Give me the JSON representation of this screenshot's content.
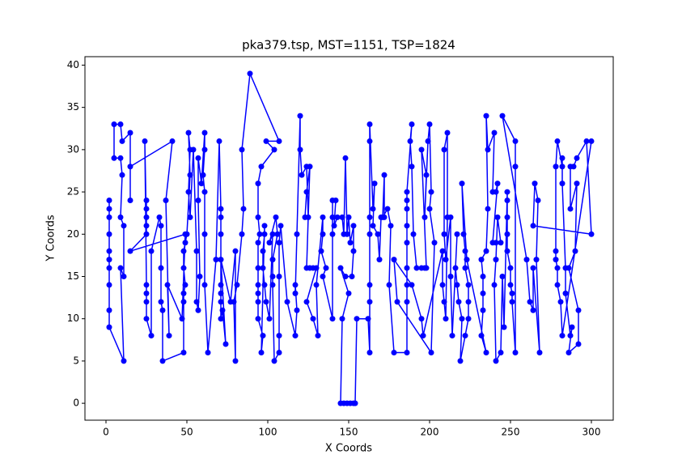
{
  "chart_data": {
    "type": "line",
    "title": "pka379.tsp, MST=1151, TSP=1824",
    "x_label": "X Coords",
    "y_label": "Y Coords",
    "xlim": [
      -13,
      313.5
    ],
    "ylim": [
      -2,
      41
    ],
    "xticks": [
      0,
      50,
      100,
      150,
      200,
      250,
      300
    ],
    "yticks": [
      0,
      5,
      10,
      15,
      20,
      25,
      30,
      35,
      40
    ],
    "grid": false,
    "x": [
      2,
      2,
      2,
      2,
      2,
      2,
      2,
      2,
      2,
      2,
      11,
      9,
      11,
      11,
      9,
      10,
      9,
      5,
      5,
      9,
      10,
      15,
      15,
      15,
      41,
      37,
      39,
      38,
      47,
      49,
      15,
      25,
      25,
      25,
      25,
      25,
      24,
      25,
      25,
      25,
      25,
      28,
      28,
      33,
      34,
      34,
      34,
      35,
      35,
      48,
      48,
      48,
      49,
      48,
      48,
      49,
      50,
      52,
      51,
      52,
      51,
      52,
      54,
      56,
      56,
      57,
      58,
      57,
      57,
      59,
      61,
      61,
      60,
      61,
      61,
      61,
      63,
      68,
      70,
      71,
      71,
      71,
      71,
      71,
      71,
      71,
      72,
      74,
      71,
      77,
      80,
      80,
      79,
      81,
      84,
      85,
      84,
      89,
      107,
      99,
      104,
      96,
      94,
      94,
      95,
      94,
      94,
      94,
      94,
      94,
      94,
      97,
      96,
      98,
      98,
      97,
      97,
      98,
      99,
      101,
      103,
      101,
      105,
      106,
      103,
      103,
      103,
      104,
      107,
      107,
      107,
      107,
      108,
      112,
      117,
      118,
      117,
      117,
      118,
      120,
      120,
      121,
      124,
      125,
      123,
      124,
      126,
      124,
      126,
      128,
      130,
      124,
      128,
      131,
      130,
      134,
      134,
      133,
      136,
      134,
      140,
      140,
      140,
      140,
      142,
      141,
      143,
      146,
      147,
      148,
      149,
      150,
      151,
      153,
      153,
      152,
      148,
      145,
      150,
      146,
      145,
      147,
      149,
      151,
      153,
      154,
      155,
      162,
      163,
      163,
      163,
      163,
      163,
      163,
      163,
      165,
      166,
      165,
      168,
      169,
      170,
      172,
      172,
      171,
      174,
      176,
      175,
      178,
      186,
      186,
      186,
      186,
      186,
      186,
      186,
      186,
      186,
      189,
      188,
      189,
      190,
      192,
      195,
      197,
      198,
      195,
      198,
      197,
      199,
      200,
      201,
      200,
      203,
      201,
      180,
      178,
      189,
      195,
      196,
      208,
      208,
      209,
      210,
      211,
      211,
      209,
      209,
      210,
      213,
      213,
      214,
      217,
      216,
      217,
      218,
      220,
      219,
      222,
      224,
      224,
      224,
      222,
      222,
      221,
      220,
      223,
      235,
      232,
      233,
      233,
      233,
      232,
      235,
      236,
      235,
      236,
      240,
      239,
      241,
      242,
      239,
      241,
      244,
      242,
      241,
      240,
      241,
      244,
      245,
      246,
      248,
      248,
      248,
      248,
      248,
      250,
      250,
      251,
      251,
      253,
      253,
      253,
      245,
      260,
      262,
      264,
      264,
      268,
      266,
      267,
      265,
      264,
      300,
      297,
      291,
      289,
      287,
      287,
      291,
      290,
      286,
      292,
      292,
      286,
      288,
      287,
      284,
      284,
      282,
      282,
      282,
      279,
      278,
      278,
      278,
      279,
      279,
      281,
      282,
      300
    ],
    "series": [
      {
        "color": "#0000ff",
        "values": [
          24,
          23,
          22,
          20,
          18,
          17,
          16,
          14,
          11,
          9,
          5,
          16,
          15,
          21,
          22,
          27,
          29,
          29,
          33,
          33,
          31,
          32,
          24,
          28,
          31,
          24,
          8,
          14,
          10,
          20,
          18,
          20,
          24,
          23,
          22,
          21,
          31,
          14,
          13,
          12,
          10,
          8,
          18,
          22,
          21,
          16,
          12,
          11,
          5,
          6,
          12,
          13,
          14,
          16,
          18,
          19,
          20,
          27,
          32,
          30,
          25,
          22,
          30,
          18,
          12,
          11,
          15,
          24,
          29,
          26,
          32,
          30,
          27,
          25,
          20,
          14,
          6,
          17,
          31,
          23,
          22,
          20,
          14,
          13,
          12,
          10,
          11,
          7,
          17,
          12,
          18,
          5,
          12,
          14,
          20,
          23,
          30,
          39,
          31,
          31,
          30,
          28,
          26,
          22,
          20,
          19,
          16,
          14,
          13,
          12,
          10,
          8,
          6,
          21,
          20,
          18,
          16,
          14,
          12,
          10,
          20,
          19,
          22,
          20,
          17,
          15,
          14,
          5,
          6,
          8,
          15,
          19,
          21,
          12,
          8,
          11,
          14,
          13,
          20,
          34,
          30,
          27,
          28,
          22,
          22,
          25,
          28,
          16,
          16,
          16,
          16,
          12,
          10,
          8,
          14,
          22,
          20,
          18,
          16,
          15,
          10,
          20,
          22,
          24,
          24,
          21,
          22,
          22,
          20,
          29,
          20,
          22,
          19,
          21,
          18,
          15,
          15,
          16,
          13,
          10,
          0,
          0,
          0,
          0,
          0,
          0,
          10,
          10,
          6,
          12,
          14,
          20,
          22,
          31,
          33,
          23,
          26,
          21,
          20,
          17,
          22,
          22,
          27,
          22,
          23,
          21,
          14,
          6,
          6,
          12,
          14,
          16,
          19,
          21,
          23,
          24,
          25,
          33,
          31,
          28,
          20,
          16,
          16,
          16,
          16,
          30,
          27,
          22,
          31,
          33,
          25,
          23,
          19,
          6,
          12,
          17,
          14,
          10,
          8,
          18,
          14,
          12,
          10,
          22,
          32,
          30,
          20,
          17,
          22,
          15,
          8,
          20,
          16,
          14,
          12,
          10,
          5,
          8,
          10,
          12,
          14,
          16,
          18,
          20,
          26,
          17,
          6,
          8,
          11,
          13,
          15,
          17,
          18,
          23,
          34,
          30,
          32,
          25,
          25,
          26,
          19,
          19,
          19,
          22,
          17,
          14,
          5,
          6,
          15,
          9,
          25,
          24,
          22,
          20,
          18,
          16,
          14,
          13,
          12,
          6,
          28,
          31,
          34,
          17,
          12,
          11,
          16,
          6,
          17,
          24,
          26,
          21,
          20,
          31,
          29,
          28,
          28,
          23,
          26,
          18,
          16,
          11,
          7,
          6,
          9,
          8,
          13,
          16,
          26,
          29,
          28,
          31,
          28,
          18,
          17,
          16,
          14,
          12,
          8,
          31
        ]
      }
    ]
  }
}
